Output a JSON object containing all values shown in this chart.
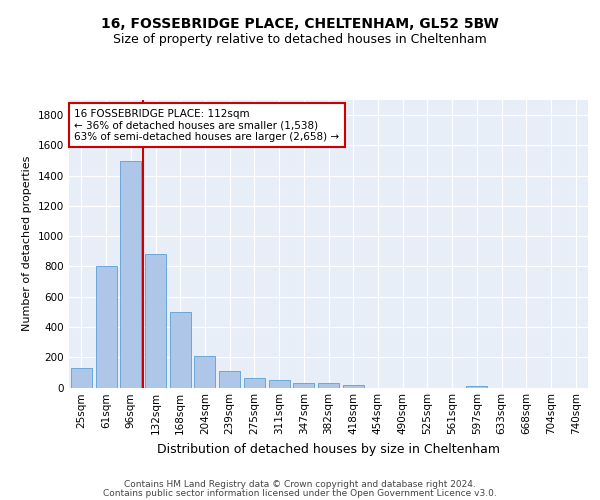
{
  "title1": "16, FOSSEBRIDGE PLACE, CHELTENHAM, GL52 5BW",
  "title2": "Size of property relative to detached houses in Cheltenham",
  "xlabel": "Distribution of detached houses by size in Cheltenham",
  "ylabel": "Number of detached properties",
  "categories": [
    "25sqm",
    "61sqm",
    "96sqm",
    "132sqm",
    "168sqm",
    "204sqm",
    "239sqm",
    "275sqm",
    "311sqm",
    "347sqm",
    "382sqm",
    "418sqm",
    "454sqm",
    "490sqm",
    "525sqm",
    "561sqm",
    "597sqm",
    "633sqm",
    "668sqm",
    "704sqm",
    "740sqm"
  ],
  "values": [
    130,
    800,
    1500,
    880,
    500,
    205,
    107,
    65,
    47,
    33,
    27,
    18,
    0,
    0,
    0,
    0,
    13,
    0,
    0,
    0,
    0
  ],
  "bar_color": "#aec6e8",
  "bar_edge_color": "#5a9fd4",
  "vline_x_index": 2.5,
  "vline_color": "#cc0000",
  "annotation_text": "16 FOSSEBRIDGE PLACE: 112sqm\n← 36% of detached houses are smaller (1,538)\n63% of semi-detached houses are larger (2,658) →",
  "annotation_box_color": "white",
  "annotation_box_edge_color": "#cc0000",
  "ylim": [
    0,
    1900
  ],
  "yticks": [
    0,
    200,
    400,
    600,
    800,
    1000,
    1200,
    1400,
    1600,
    1800
  ],
  "bg_color": "#e8eef8",
  "grid_color": "white",
  "footer_line1": "Contains HM Land Registry data © Crown copyright and database right 2024.",
  "footer_line2": "Contains public sector information licensed under the Open Government Licence v3.0.",
  "title1_fontsize": 10,
  "title2_fontsize": 9,
  "xlabel_fontsize": 9,
  "ylabel_fontsize": 8,
  "tick_fontsize": 7.5,
  "annotation_fontsize": 7.5,
  "footer_fontsize": 6.5
}
